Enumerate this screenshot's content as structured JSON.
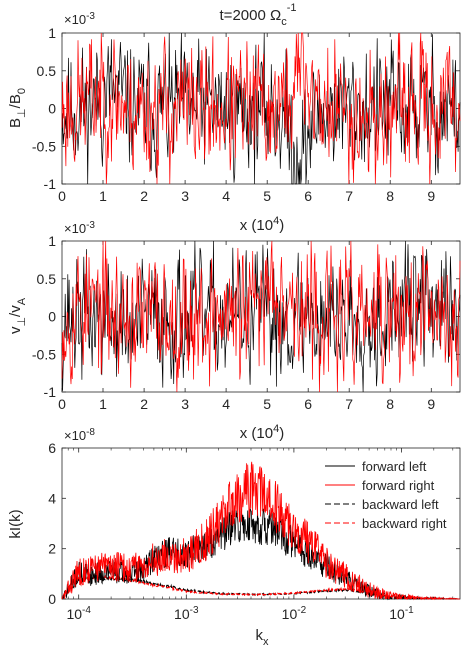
{
  "chart_data": [
    {
      "type": "line",
      "title": "t=2000 Ω",
      "title_sub": "c",
      "title_sup": "-1",
      "ylabel": "B",
      "ylabel_sub1": "⊥",
      "ylabel_mid": "/B",
      "ylabel_sub2": "0",
      "xlabel": "x (10",
      "xlabel_sup": "4",
      "xlabel_end": ")",
      "exponent_label": "×10",
      "exponent_sup": "-3",
      "xlim": [
        0,
        9.7
      ],
      "ylim": [
        -1,
        1
      ],
      "xticks": [
        "0",
        "1",
        "2",
        "3",
        "4",
        "5",
        "6",
        "7",
        "8",
        "9"
      ],
      "yticks": [
        "1",
        "0.5",
        "0",
        "-0.5",
        "-1"
      ],
      "series": [
        {
          "color": "#000000",
          "seed": 11,
          "amp": 0.38,
          "bumps": [
            [
              5.8,
              -0.55,
              0.35
            ],
            [
              1.2,
              0.2,
              0.4
            ]
          ]
        },
        {
          "color": "#ff0000",
          "seed": 23,
          "amp": 0.4,
          "bumps": [
            [
              5.85,
              0.55,
              0.25
            ],
            [
              1.0,
              0.2,
              0.5
            ],
            [
              7.6,
              -0.15,
              0.4
            ]
          ]
        }
      ]
    },
    {
      "type": "line",
      "ylabel": "v",
      "ylabel_sub1": "⊥",
      "ylabel_mid": "/v",
      "ylabel_sub2": "A",
      "xlabel": "x (10",
      "xlabel_sup": "4",
      "xlabel_end": ")",
      "exponent_label": "×10",
      "exponent_sup": "-3",
      "xlim": [
        0,
        9.7
      ],
      "ylim": [
        -1,
        1
      ],
      "xticks": [
        "0",
        "1",
        "2",
        "3",
        "4",
        "5",
        "6",
        "7",
        "8",
        "9"
      ],
      "yticks": [
        "1",
        "0.5",
        "0",
        "-0.5",
        "-1"
      ],
      "series": [
        {
          "color": "#000000",
          "seed": 37,
          "amp": 0.38,
          "bumps": [
            [
              8.7,
              0.2,
              0.5
            ],
            [
              1.6,
              -0.2,
              0.4
            ]
          ]
        },
        {
          "color": "#ff0000",
          "seed": 53,
          "amp": 0.4,
          "bumps": [
            [
              5.2,
              0.55,
              0.35
            ],
            [
              0.6,
              0.15,
              0.4
            ]
          ]
        }
      ]
    },
    {
      "type": "line",
      "ylabel": "kI(k)",
      "xlabel": "k",
      "xlabel_sub": "x",
      "exponent_label": "×10",
      "exponent_sup": "-8",
      "x_scale": "log",
      "xlim": [
        7e-05,
        0.35
      ],
      "ylim": [
        0,
        6
      ],
      "xticks": [
        {
          "base": "10",
          "exp": "-4"
        },
        {
          "base": "10",
          "exp": "-3"
        },
        {
          "base": "10",
          "exp": "-2"
        },
        {
          "base": "10",
          "exp": "-1"
        }
      ],
      "yticks": [
        "6",
        "4",
        "2",
        "0"
      ],
      "legend_position": "top-right",
      "series": [
        {
          "name": "forward left",
          "color": "#000000",
          "dash": "solid",
          "seed": 71,
          "noise": 0.45,
          "points": [
            [
              7e-05,
              0.0
            ],
            [
              0.0001,
              1.05
            ],
            [
              0.00013,
              0.95
            ],
            [
              0.0002,
              1.15
            ],
            [
              0.0003,
              0.95
            ],
            [
              0.0004,
              1.2
            ],
            [
              0.0005,
              1.65
            ],
            [
              0.0007,
              1.9
            ],
            [
              0.001,
              1.85
            ],
            [
              0.0015,
              2.1
            ],
            [
              0.002,
              2.5
            ],
            [
              0.003,
              2.9
            ],
            [
              0.004,
              3.0
            ],
            [
              0.006,
              2.8
            ],
            [
              0.01,
              2.2
            ],
            [
              0.02,
              1.3
            ],
            [
              0.03,
              0.8
            ],
            [
              0.05,
              0.3
            ],
            [
              0.08,
              0.08
            ],
            [
              0.15,
              0.02
            ],
            [
              0.35,
              0.0
            ]
          ]
        },
        {
          "name": "forward right",
          "color": "#ff0000",
          "dash": "solid",
          "seed": 83,
          "noise": 0.55,
          "points": [
            [
              7e-05,
              0.0
            ],
            [
              0.0001,
              1.1
            ],
            [
              0.00015,
              1.25
            ],
            [
              0.0002,
              1.35
            ],
            [
              0.0003,
              1.2
            ],
            [
              0.0004,
              1.35
            ],
            [
              0.0005,
              1.55
            ],
            [
              0.0007,
              1.75
            ],
            [
              0.001,
              1.7
            ],
            [
              0.0015,
              2.3
            ],
            [
              0.002,
              3.0
            ],
            [
              0.003,
              4.1
            ],
            [
              0.004,
              4.4
            ],
            [
              0.005,
              4.2
            ],
            [
              0.007,
              3.6
            ],
            [
              0.01,
              2.8
            ],
            [
              0.02,
              1.5
            ],
            [
              0.03,
              0.9
            ],
            [
              0.05,
              0.35
            ],
            [
              0.08,
              0.1
            ],
            [
              0.15,
              0.02
            ],
            [
              0.35,
              0.0
            ]
          ]
        },
        {
          "name": "backward left",
          "color": "#000000",
          "dash": "dashed",
          "seed": 97,
          "noise": 0.06,
          "points": [
            [
              7e-05,
              0.0
            ],
            [
              0.0001,
              0.75
            ],
            [
              0.00013,
              0.85
            ],
            [
              0.0002,
              0.8
            ],
            [
              0.0003,
              0.75
            ],
            [
              0.0004,
              0.7
            ],
            [
              0.0005,
              0.6
            ],
            [
              0.0007,
              0.5
            ],
            [
              0.001,
              0.35
            ],
            [
              0.002,
              0.22
            ],
            [
              0.004,
              0.18
            ],
            [
              0.007,
              0.2
            ],
            [
              0.01,
              0.22
            ],
            [
              0.02,
              0.32
            ],
            [
              0.03,
              0.35
            ],
            [
              0.04,
              0.3
            ],
            [
              0.06,
              0.15
            ],
            [
              0.1,
              0.04
            ],
            [
              0.2,
              0.01
            ],
            [
              0.35,
              0.0
            ]
          ]
        },
        {
          "name": "backward right",
          "color": "#ff0000",
          "dash": "dashed",
          "seed": 109,
          "noise": 0.06,
          "points": [
            [
              7e-05,
              0.0
            ],
            [
              0.0001,
              0.8
            ],
            [
              0.00013,
              0.9
            ],
            [
              0.0002,
              0.85
            ],
            [
              0.0003,
              0.75
            ],
            [
              0.0004,
              0.65
            ],
            [
              0.0005,
              0.55
            ],
            [
              0.0007,
              0.45
            ],
            [
              0.001,
              0.3
            ],
            [
              0.002,
              0.2
            ],
            [
              0.004,
              0.17
            ],
            [
              0.007,
              0.2
            ],
            [
              0.01,
              0.24
            ],
            [
              0.02,
              0.35
            ],
            [
              0.03,
              0.4
            ],
            [
              0.04,
              0.33
            ],
            [
              0.06,
              0.17
            ],
            [
              0.1,
              0.05
            ],
            [
              0.2,
              0.01
            ],
            [
              0.35,
              0.0
            ]
          ]
        }
      ]
    }
  ]
}
